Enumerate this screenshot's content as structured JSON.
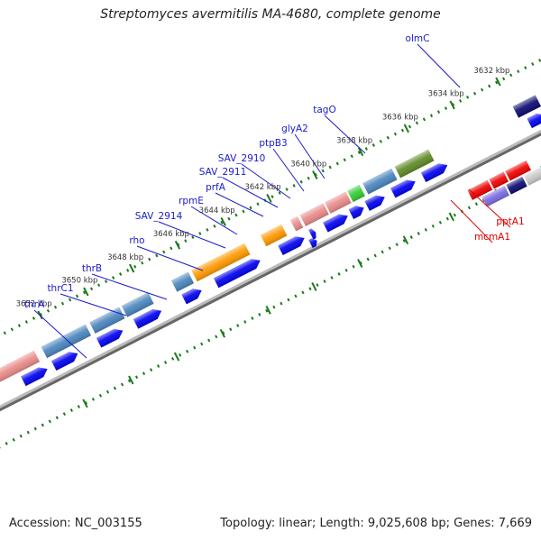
{
  "title": "Streptomyces avermitilis MA-4680, complete genome",
  "footer": {
    "accession": "Accession: NC_003155",
    "stats": "Topology: linear; Length: 9,025,608 bp; Genes: 7,669"
  },
  "colors": {
    "cds": "#0000ee",
    "label": "#1a1acc",
    "label_rna": "#dd0000",
    "tick": "#1a7a1a",
    "backbone": "#888888",
    "feature_orange": "#ff9900",
    "feature_steel": "#4a85bd",
    "feature_pink": "#ea8a8a",
    "feature_green": "#33cc33",
    "feature_olive": "#5f8a26",
    "feature_navy": "#0a0a70",
    "feature_red": "#ee0000",
    "feature_lavender": "#7a6ae0",
    "feature_grey": "#c8c8c8"
  },
  "ticks": [
    {
      "label": "3632 kbp"
    },
    {
      "label": "3634 kbp"
    },
    {
      "label": "3636 kbp"
    },
    {
      "label": "3638 kbp"
    },
    {
      "label": "3640 kbp"
    },
    {
      "label": "3642 kbp"
    },
    {
      "label": "3644 kbp"
    },
    {
      "label": "3646 kbp"
    },
    {
      "label": "3648 kbp"
    },
    {
      "label": "3650 kbp"
    },
    {
      "label": "3652 kbp"
    }
  ],
  "genes": [
    {
      "label": "olmC",
      "strand": "forward"
    },
    {
      "label": "tagO",
      "strand": "forward"
    },
    {
      "label": "glyA2",
      "strand": "forward"
    },
    {
      "label": "ptpB3",
      "strand": "forward"
    },
    {
      "label": "SAV_2910",
      "strand": "forward"
    },
    {
      "label": "SAV_2911",
      "strand": "forward"
    },
    {
      "label": "prfA",
      "strand": "forward"
    },
    {
      "label": "rpmE",
      "strand": "forward"
    },
    {
      "label": "SAV_2914",
      "strand": "forward"
    },
    {
      "label": "rho",
      "strand": "forward"
    },
    {
      "label": "thrB",
      "strand": "forward"
    },
    {
      "label": "thrC1",
      "strand": "forward"
    },
    {
      "label": "thrA",
      "strand": "forward"
    },
    {
      "label": "pptA1",
      "strand": "reverse"
    },
    {
      "label": "mcmA1",
      "strand": "reverse"
    }
  ]
}
